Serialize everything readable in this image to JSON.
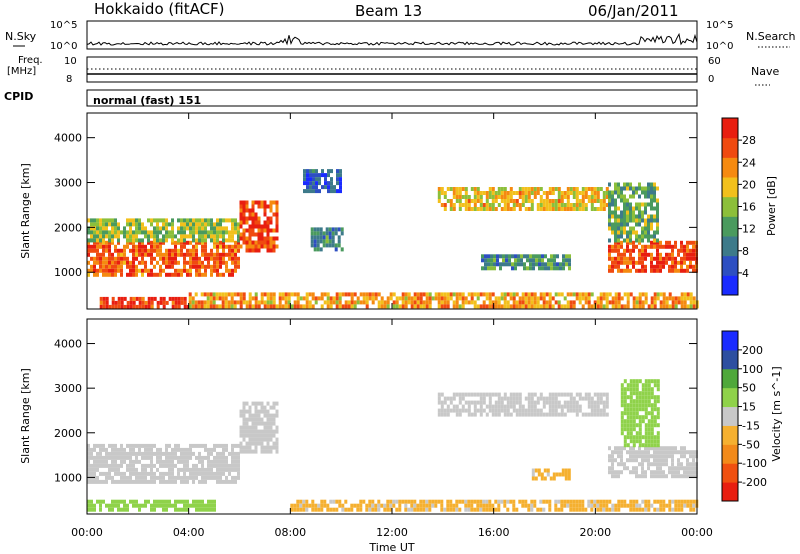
{
  "header": {
    "radar_title": "Hokkaido (fitACF)",
    "beam": "Beam 13",
    "date": "06/Jan/2011"
  },
  "top_panels": {
    "nsky_label": "N.Sky",
    "nsky_ticks": [
      "10^5",
      "10^0"
    ],
    "nsearch_label": "N.Search",
    "nsearch_ticks": [
      "10^5",
      "10^0"
    ],
    "freq_label": "Freq.",
    "freq_unit": "[MHz]",
    "freq_ticks": [
      "10",
      "8"
    ],
    "nave_label": "Nave",
    "nave_ticks": [
      "60",
      "0"
    ],
    "cpid_label": "CPID",
    "cpid_value": "normal (fast) 151"
  },
  "colors": {
    "power_scale": [
      "#1a2bff",
      "#2d4fc2",
      "#3d7a8a",
      "#4a9a5e",
      "#8cbf3a",
      "#f2c01c",
      "#f58a10",
      "#f04a10",
      "#e81e10"
    ],
    "velocity_scale": [
      "#e81e10",
      "#f05010",
      "#f28a1a",
      "#f5b030",
      "#c8c8c8",
      "#8fd24a",
      "#4fa83a",
      "#2d4fa0",
      "#1a2bff"
    ]
  },
  "chart_data": [
    {
      "type": "heatmap",
      "name": "power",
      "ylabel": "Slant Range [km]",
      "ylim": [
        180,
        4550
      ],
      "yticks": [
        "4000",
        "3000",
        "2000",
        "1000"
      ],
      "ytick_values": [
        4000,
        3000,
        2000,
        1000
      ],
      "colorbar_label": "Power [dB]",
      "colorbar_ticks": [
        "28",
        "24",
        "20",
        "16",
        "12",
        "8",
        "4"
      ],
      "colorbar_tick_values": [
        28,
        24,
        20,
        16,
        12,
        8,
        4
      ],
      "colorbar_range": [
        0,
        32
      ],
      "regions": [
        {
          "t": [
            0.0,
            6.0
          ],
          "r": [
            900,
            1700
          ],
          "v": 26
        },
        {
          "t": [
            0.0,
            6.0
          ],
          "r": [
            1700,
            2200
          ],
          "v": 16
        },
        {
          "t": [
            6.0,
            7.5
          ],
          "r": [
            1500,
            2600
          ],
          "v": 27
        },
        {
          "t": [
            8.8,
            10.0
          ],
          "r": [
            1500,
            2000
          ],
          "v": 10
        },
        {
          "t": [
            8.5,
            10.0
          ],
          "r": [
            2800,
            3300
          ],
          "v": 6
        },
        {
          "t": [
            13.8,
            20.5
          ],
          "r": [
            2450,
            2900
          ],
          "v": 20
        },
        {
          "t": [
            15.5,
            19.0
          ],
          "r": [
            1050,
            1400
          ],
          "v": 11
        },
        {
          "t": [
            20.5,
            24.0
          ],
          "r": [
            1000,
            1700
          ],
          "v": 27
        },
        {
          "t": [
            20.5,
            22.5
          ],
          "r": [
            1700,
            3000
          ],
          "v": 14
        },
        {
          "t": [
            0.5,
            4.0
          ],
          "r": [
            250,
            450
          ],
          "v": 29
        },
        {
          "t": [
            4.0,
            24.0
          ],
          "r": [
            250,
            550
          ],
          "v": 22
        }
      ]
    },
    {
      "type": "heatmap",
      "name": "velocity",
      "ylabel": "Slant Range [km]",
      "xlabel": "Time UT",
      "xlim": [
        0,
        24
      ],
      "xticks": [
        "00:00",
        "04:00",
        "08:00",
        "12:00",
        "16:00",
        "20:00",
        "00:00"
      ],
      "xtick_values": [
        0,
        4,
        8,
        12,
        16,
        20,
        24
      ],
      "ylim": [
        180,
        4550
      ],
      "yticks": [
        "4000",
        "3000",
        "2000",
        "1000"
      ],
      "ytick_values": [
        4000,
        3000,
        2000,
        1000
      ],
      "colorbar_label": "Velocity [m s^-1]",
      "colorbar_ticks": [
        "200",
        "100",
        "50",
        "15",
        "-15",
        "-50",
        "-100",
        "-200"
      ],
      "colorbar_tick_values": [
        200,
        100,
        50,
        15,
        -15,
        -50,
        -100,
        -200
      ],
      "regions": [
        {
          "t": [
            0.0,
            6.0
          ],
          "r": [
            900,
            1750
          ],
          "v": 0
        },
        {
          "t": [
            6.0,
            7.5
          ],
          "r": [
            1600,
            2700
          ],
          "v": 0
        },
        {
          "t": [
            13.8,
            20.5
          ],
          "r": [
            2450,
            2900
          ],
          "v": 0
        },
        {
          "t": [
            20.5,
            24.0
          ],
          "r": [
            1000,
            1700
          ],
          "v": 0
        },
        {
          "t": [
            21.0,
            22.5
          ],
          "r": [
            1700,
            3200
          ],
          "v": 60
        },
        {
          "t": [
            0.0,
            5.0
          ],
          "r": [
            250,
            500
          ],
          "v": 60
        },
        {
          "t": [
            8.0,
            24.0
          ],
          "r": [
            250,
            500
          ],
          "v": -40
        },
        {
          "t": [
            17.5,
            19.0
          ],
          "r": [
            1000,
            1200
          ],
          "v": -45
        }
      ]
    }
  ]
}
